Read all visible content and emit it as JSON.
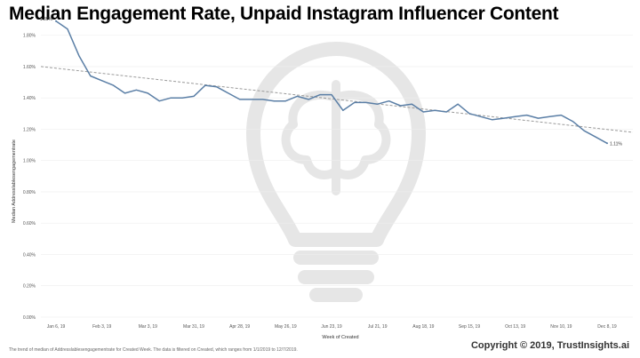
{
  "chart_data": {
    "type": "line",
    "title": "Median Engagement Rate, Unpaid Instagram Influencer Content",
    "xlabel": "Week of Created",
    "ylabel": "Median Addresslablesengagementrate",
    "ylim": [
      0,
      1.9
    ],
    "yticks": [
      "0.00%",
      "0.20%",
      "0.40%",
      "0.60%",
      "0.80%",
      "1.00%",
      "1.20%",
      "1.40%",
      "1.60%",
      "1.80%"
    ],
    "xticks": [
      "Jan 6, 19",
      "Feb 3, 19",
      "Mar 3, 19",
      "Mar 31, 19",
      "Apr 28, 19",
      "May 26, 19",
      "Jun 23, 19",
      "Jul 21, 19",
      "Aug 18, 19",
      "Sep 15, 19",
      "Oct 13, 19",
      "Nov 10, 19",
      "Dec 8, 19"
    ],
    "grid": true,
    "series": [
      {
        "values": [
          1.89,
          1.84,
          1.67,
          1.54,
          1.51,
          1.48,
          1.43,
          1.45,
          1.43,
          1.38,
          1.4,
          1.4,
          1.41,
          1.48,
          1.47,
          1.43,
          1.39,
          1.39,
          1.39,
          1.38,
          1.38,
          1.41,
          1.39,
          1.42,
          1.42,
          1.32,
          1.37,
          1.37,
          1.36,
          1.38,
          1.35,
          1.36,
          1.31,
          1.32,
          1.31,
          1.36,
          1.3,
          1.28,
          1.26,
          1.27,
          1.28,
          1.29,
          1.27,
          1.28,
          1.29,
          1.25,
          1.19,
          1.15,
          1.11
        ]
      }
    ],
    "trendline": {
      "start": 1.6,
      "end": 1.18
    },
    "annotations": {
      "first": "1.89%",
      "last": "1.11%"
    }
  },
  "footnote": "The trend of median of Addresslablesengagementrate for Created Week. The data is filtered on Created, which ranges from 1/1/2019 to 12/7/2019.",
  "copyright": "Copyright © 2019, TrustInsights.ai",
  "colors": {
    "line": "#5b7fa6",
    "trend": "#9a9a9a",
    "watermark": "#e4e4e4"
  },
  "watermark_icon": "lightbulb-brain-icon"
}
